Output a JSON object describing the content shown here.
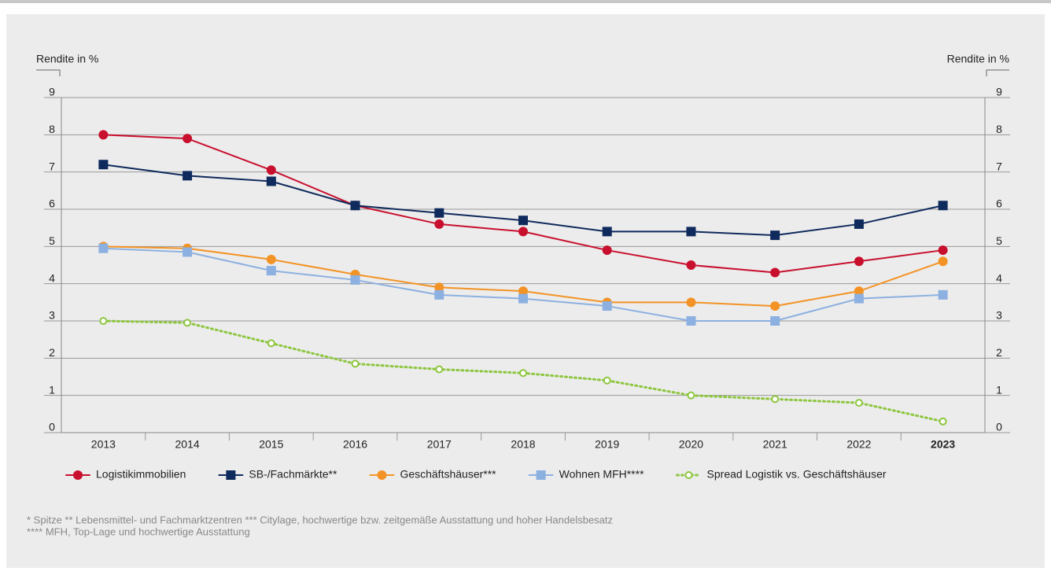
{
  "chart_data": {
    "type": "line",
    "y_label": "Rendite in %",
    "y2_label": "Rendite in %",
    "categories": [
      "2013",
      "2014",
      "2015",
      "2016",
      "2017",
      "2018",
      "2019",
      "2020",
      "2021",
      "2022",
      "2023"
    ],
    "series": [
      {
        "name": "Logistikimmobilien",
        "color": "#c8102e",
        "marker": "circle",
        "values": [
          8.0,
          7.9,
          7.05,
          6.1,
          5.6,
          5.4,
          4.9,
          4.5,
          4.3,
          4.6,
          4.9
        ]
      },
      {
        "name": "SB-/Fachmärkte**",
        "color": "#0f2a5c",
        "marker": "square",
        "values": [
          7.2,
          6.9,
          6.75,
          6.1,
          5.9,
          5.7,
          5.4,
          5.4,
          5.3,
          5.6,
          6.1
        ]
      },
      {
        "name": "Geschäftshäuser***",
        "color": "#f39325",
        "marker": "circle",
        "values": [
          5.0,
          4.95,
          4.65,
          4.25,
          3.9,
          3.8,
          3.5,
          3.5,
          3.4,
          3.8,
          4.6
        ]
      },
      {
        "name": "Wohnen MFH****",
        "color": "#8cb0e0",
        "marker": "square",
        "values": [
          4.95,
          4.85,
          4.35,
          4.1,
          3.7,
          3.6,
          3.4,
          3.0,
          3.0,
          3.6,
          3.7
        ]
      },
      {
        "name": "Spread Logistik vs. Geschäftshäuser",
        "color": "#8dc63f",
        "marker": "open-circle",
        "dotted": true,
        "values": [
          3.0,
          2.95,
          2.4,
          1.85,
          1.7,
          1.6,
          1.4,
          1.0,
          0.9,
          0.8,
          0.3
        ]
      }
    ],
    "ylim": [
      0,
      9
    ],
    "yticks": [
      0,
      1,
      2,
      3,
      4,
      5,
      6,
      7,
      8,
      9
    ],
    "y2lim": [
      0,
      9
    ],
    "y2ticks": [
      0,
      1,
      2,
      3,
      4,
      5,
      6,
      7,
      8,
      9
    ],
    "grid": true,
    "notes": [
      "* Spitze   ** Lebensmittel- und Fachmarktzentren   *** Citylage, hochwertige bzw. zeitgemäße Ausstattung und hoher Handelsbesatz",
      "**** MFH, Top-Lage und hochwertige Ausstattung"
    ]
  }
}
